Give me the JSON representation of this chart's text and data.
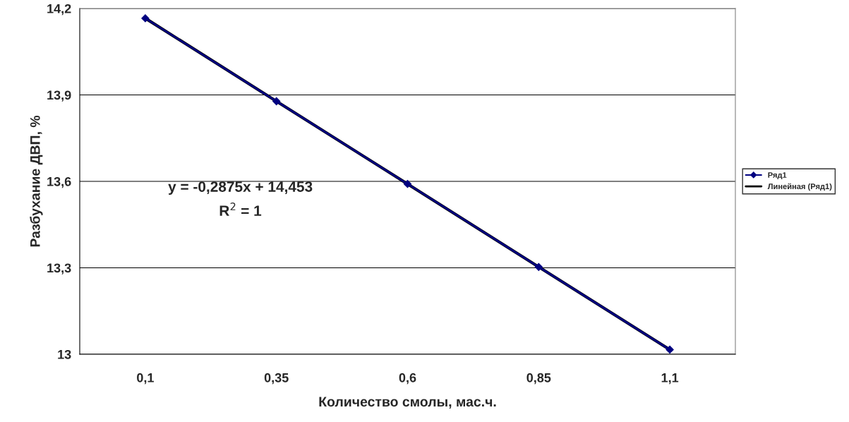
{
  "chart_data": {
    "type": "line",
    "xlabel": "Количество смолы, мас.ч.",
    "ylabel": "Разбухание ДВП, %",
    "categories": [
      "0,1",
      "0,35",
      "0,6",
      "0,85",
      "1,1"
    ],
    "series": [
      {
        "name": "Ряд1",
        "color": "#000080",
        "marker": "diamond",
        "values": [
          14.166,
          13.878,
          13.591,
          13.303,
          13.016
        ]
      },
      {
        "name": "Линейная (Ряд1)",
        "color": "#000000",
        "marker": "none",
        "values": [
          14.166,
          13.878,
          13.591,
          13.303,
          13.016
        ]
      }
    ],
    "ylim": [
      13,
      14.2
    ],
    "yticks": [
      13,
      {
        "value": 13.3,
        "label": "13,3"
      },
      {
        "value": 13.6,
        "label": "13,6"
      },
      {
        "value": 13.9,
        "label": "13,9"
      },
      {
        "value": 14.2,
        "label": "14,2"
      }
    ],
    "grid": "y",
    "legend": "right",
    "annotations": [
      "y = -0,2875x + 14,453",
      "R$^{2}$ = 1"
    ]
  }
}
